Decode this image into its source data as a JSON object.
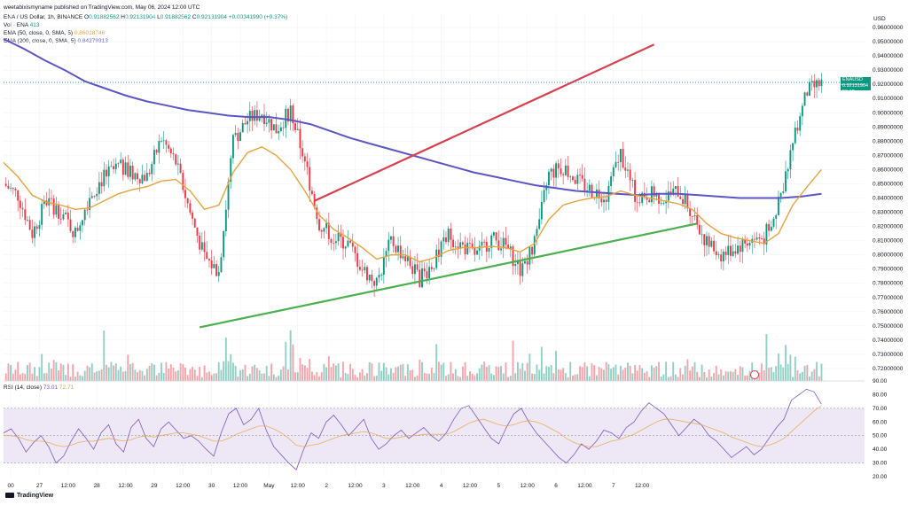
{
  "header": {
    "publisher": "weetabixismyname published on TradingView.com, May 06, 2024 12:00 UTC",
    "symbol": "ENA / US Dollar, 1h, BINANCE",
    "ohlc_prefix": "O",
    "open": "0.91882562",
    "high_prefix": "H",
    "high": "0.92131904",
    "low_prefix": "L",
    "low": "0.91882562",
    "close_prefix": "C",
    "close": "0.92131904",
    "change": "+0.00341990 (+0.37%)",
    "vol_label": "Vol · ENA",
    "vol_value": "413",
    "ema50_label": "EMA (50, close, 0, SMA, 5)",
    "ema50_value": "0.86018746",
    "ema200_label": "EMA (200, close, 0, SMA, 5)",
    "ema200_value": "0.84279313",
    "rsi_label": "RSI (14, close)",
    "rsi_value": "73.01",
    "rsi_ma_value": "72.71",
    "currency": "USD",
    "price_tag_symbol": "ENAUSD",
    "price_tag_value": "0.92131904",
    "price_tag_countdown": "59:10",
    "brand": "TradingView"
  },
  "colors": {
    "up": "#089981",
    "down": "#f23645",
    "ema50": "#e8a33d",
    "ema200": "#5c56c4",
    "resistance": "#d9414f",
    "support": "#4caf50",
    "rsi_band": "#ede7f6",
    "rsi_line": "#7e57c2"
  },
  "chart_data": [
    {
      "type": "candlestick",
      "title": "ENA / US Dollar, 1h, BINANCE",
      "ylabel": "USD",
      "ylim": [
        0.71,
        0.97
      ],
      "yticks": [
        "0.96000000",
        "0.95000000",
        "0.94000000",
        "0.93000000",
        "0.92000000",
        "0.91000000",
        "0.90000000",
        "0.89000000",
        "0.88000000",
        "0.87000000",
        "0.86000000",
        "0.85000000",
        "0.84000000",
        "0.83000000",
        "0.82000000",
        "0.81000000",
        "0.80000000",
        "0.79000000",
        "0.78000000",
        "0.77000000",
        "0.76000000",
        "0.75000000",
        "0.74000000",
        "0.73000000",
        "0.72000000"
      ],
      "xticks": [
        "00",
        "27",
        "12:00",
        "28",
        "12:00",
        "29",
        "12:00",
        "30",
        "12:00",
        "May",
        "12:00",
        "2",
        "12:00",
        "3",
        "12:00",
        "4",
        "12:00",
        "5",
        "12:00",
        "6",
        "12:00",
        "7",
        "12:00"
      ],
      "close_path_hours": [
        0,
        6,
        12,
        18,
        24,
        30,
        36,
        42,
        48,
        54,
        60,
        66,
        72,
        78,
        84,
        90,
        96,
        102,
        108,
        114,
        120,
        126,
        132,
        138,
        144,
        150,
        156,
        162,
        168,
        174,
        180,
        186,
        192,
        198,
        204,
        210,
        216,
        222,
        228,
        234,
        240,
        246,
        252,
        258
      ],
      "close_path": [
        0.85,
        0.842,
        0.815,
        0.838,
        0.83,
        0.815,
        0.842,
        0.855,
        0.862,
        0.857,
        0.855,
        0.882,
        0.865,
        0.83,
        0.798,
        0.788,
        0.88,
        0.895,
        0.9,
        0.888,
        0.902,
        0.865,
        0.822,
        0.812,
        0.808,
        0.79,
        0.78,
        0.81,
        0.798,
        0.783,
        0.795,
        0.814,
        0.806,
        0.8,
        0.812,
        0.806,
        0.79,
        0.808,
        0.857,
        0.862,
        0.852,
        0.845,
        0.842,
        0.872
      ],
      "close_path_tail_hours": [
        264,
        270,
        276,
        282,
        288,
        294,
        300,
        306,
        312,
        318,
        324,
        330,
        336,
        342
      ],
      "close_path_tail": [
        0.842,
        0.843,
        0.84,
        0.845,
        0.83,
        0.808,
        0.8,
        0.805,
        0.81,
        0.812,
        0.835,
        0.88,
        0.915,
        0.921
      ],
      "ema50": [
        0.865,
        0.855,
        0.842,
        0.837,
        0.835,
        0.832,
        0.833,
        0.838,
        0.843,
        0.846,
        0.848,
        0.852,
        0.853,
        0.845,
        0.832,
        0.835,
        0.858,
        0.872,
        0.876,
        0.87,
        0.86,
        0.845,
        0.828,
        0.818,
        0.812,
        0.805,
        0.797,
        0.8,
        0.8,
        0.795,
        0.798,
        0.803,
        0.805,
        0.805,
        0.806,
        0.805,
        0.802,
        0.808,
        0.825,
        0.835,
        0.838,
        0.84,
        0.841,
        0.845,
        0.842,
        0.84,
        0.838,
        0.836,
        0.832,
        0.822,
        0.815,
        0.812,
        0.81,
        0.808,
        0.815,
        0.835,
        0.848,
        0.86
      ],
      "ema200": [
        0.952,
        0.945,
        0.937,
        0.93,
        0.922,
        0.917,
        0.912,
        0.908,
        0.905,
        0.902,
        0.9,
        0.898,
        0.897,
        0.897,
        0.895,
        0.892,
        0.887,
        0.882,
        0.878,
        0.874,
        0.87,
        0.866,
        0.862,
        0.858,
        0.855,
        0.852,
        0.849,
        0.847,
        0.845,
        0.844,
        0.843,
        0.842,
        0.843,
        0.843,
        0.842,
        0.841,
        0.84,
        0.84,
        0.84,
        0.841,
        0.843
      ],
      "resistance_line": {
        "from": {
          "hour": 130,
          "price": 0.838
        },
        "to": {
          "hour": 272,
          "price": 0.948
        }
      },
      "support_line": {
        "from": {
          "hour": 82,
          "price": 0.749
        },
        "to": {
          "hour": 290,
          "price": 0.822
        }
      },
      "last_price": 0.92131904
    },
    {
      "type": "line",
      "title": "RSI (14, close)",
      "ylim": [
        20,
        90
      ],
      "yticks": [
        "90.00",
        "80.00",
        "70.00",
        "60.00",
        "50.00",
        "40.00",
        "30.00",
        "20.00"
      ],
      "band": [
        30,
        70
      ],
      "midline": 50,
      "values": [
        52,
        55,
        48,
        38,
        45,
        50,
        42,
        30,
        35,
        46,
        55,
        48,
        40,
        52,
        58,
        44,
        38,
        56,
        62,
        48,
        42,
        55,
        60,
        54,
        48,
        50,
        46,
        40,
        35,
        52,
        66,
        70,
        58,
        62,
        70,
        54,
        42,
        36,
        30,
        25,
        40,
        52,
        48,
        60,
        65,
        58,
        50,
        56,
        62,
        48,
        40,
        44,
        50,
        54,
        48,
        52,
        56,
        50,
        46,
        52,
        62,
        70,
        72,
        64,
        56,
        48,
        44,
        56,
        66,
        70,
        60,
        52,
        46,
        40,
        34,
        30,
        36,
        44,
        40,
        46,
        54,
        52,
        48,
        56,
        60,
        68,
        74,
        70,
        66,
        58,
        50,
        56,
        62,
        58,
        50,
        46,
        40,
        34,
        38,
        42,
        36,
        40,
        48,
        56,
        62,
        76,
        80,
        84,
        82,
        73
      ],
      "ma_values": [
        50,
        50,
        49,
        47,
        46,
        46,
        45,
        43,
        42,
        43,
        45,
        46,
        46,
        47,
        48,
        47,
        46,
        47,
        49,
        50,
        49,
        50,
        51,
        52,
        52,
        51,
        50,
        48,
        46,
        46,
        48,
        51,
        53,
        55,
        57,
        57,
        55,
        52,
        48,
        43,
        42,
        43,
        44,
        46,
        48,
        50,
        51,
        52,
        53,
        52,
        50,
        48,
        48,
        49,
        50,
        50,
        51,
        51,
        51,
        51,
        53,
        56,
        59,
        61,
        62,
        60,
        58,
        57,
        58,
        60,
        61,
        60,
        58,
        55,
        52,
        48,
        45,
        43,
        42,
        42,
        44,
        46,
        47,
        49,
        51,
        54,
        57,
        60,
        62,
        62,
        61,
        60,
        59,
        58,
        56,
        54,
        52,
        49,
        47,
        45,
        43,
        42,
        43,
        45,
        48,
        53,
        58,
        63,
        68,
        72
      ]
    }
  ]
}
